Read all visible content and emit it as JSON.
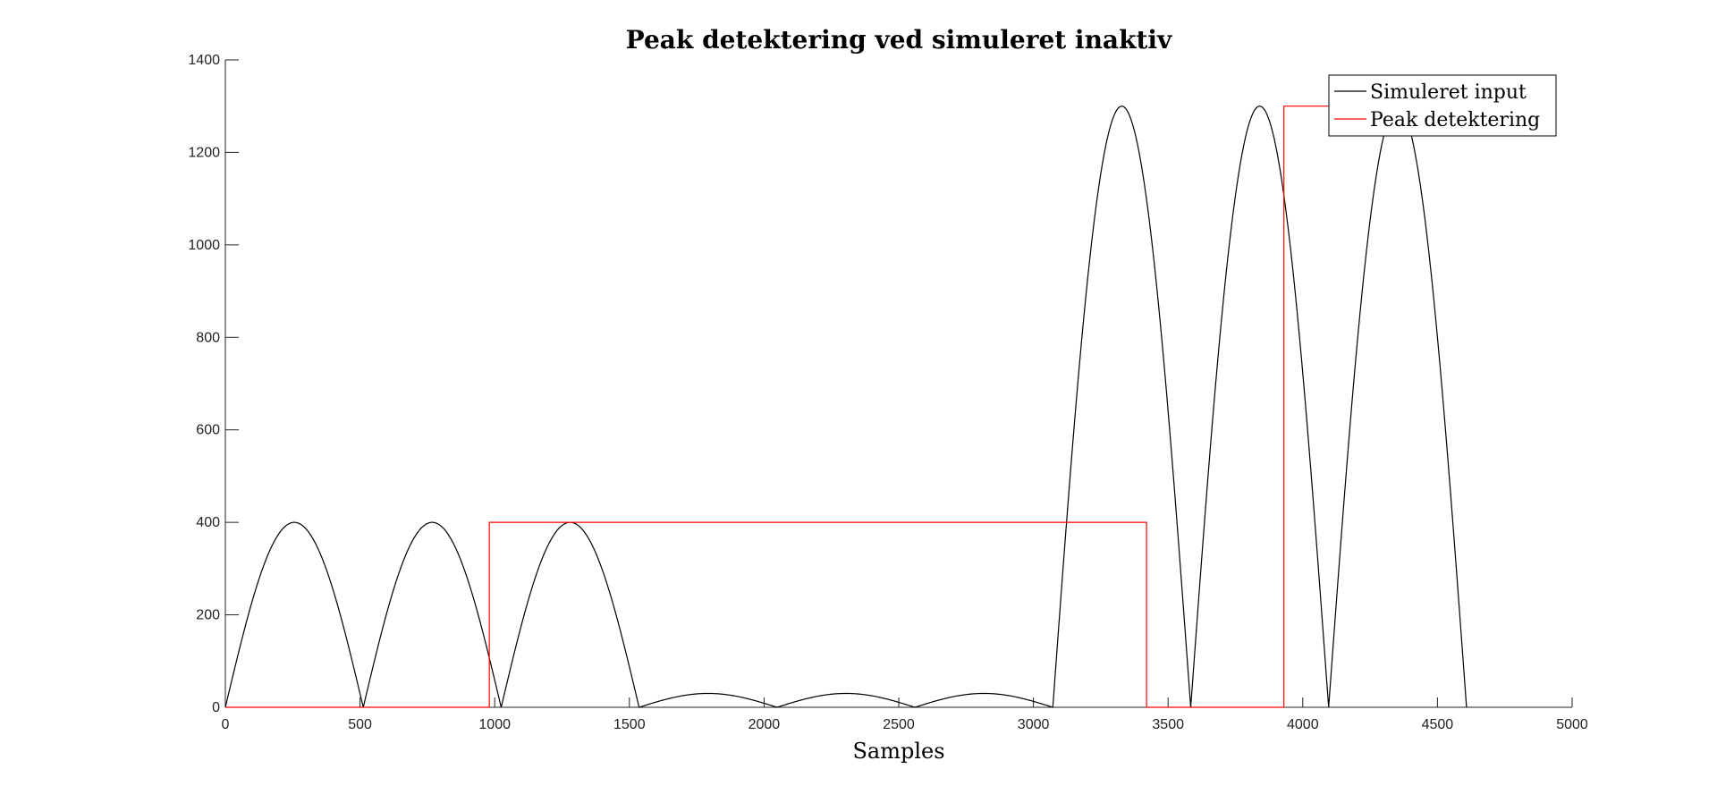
{
  "chart_data": {
    "type": "line",
    "title": "Peak detektering ved simuleret inaktiv",
    "xlabel": "Samples",
    "ylabel": "",
    "xlim": [
      0,
      5000
    ],
    "ylim": [
      0,
      1400
    ],
    "xticks": [
      0,
      500,
      1000,
      1500,
      2000,
      2500,
      3000,
      3500,
      4000,
      4500,
      5000
    ],
    "yticks": [
      0,
      200,
      400,
      600,
      800,
      1000,
      1200,
      1400
    ],
    "grid": false,
    "legend_position": "top-right",
    "series": [
      {
        "name": "Simuleret input",
        "color": "#000000",
        "style": "rectified-sine",
        "segments": [
          {
            "start": 0,
            "end": 512,
            "amplitude": 400
          },
          {
            "start": 512,
            "end": 1024,
            "amplitude": 400
          },
          {
            "start": 1024,
            "end": 1536,
            "amplitude": 400
          },
          {
            "start": 1536,
            "end": 2048,
            "amplitude": 30
          },
          {
            "start": 2048,
            "end": 2560,
            "amplitude": 30
          },
          {
            "start": 2560,
            "end": 3072,
            "amplitude": 30
          },
          {
            "start": 3072,
            "end": 3584,
            "amplitude": 1300
          },
          {
            "start": 3584,
            "end": 4096,
            "amplitude": 1300
          },
          {
            "start": 4096,
            "end": 4608,
            "amplitude": 1300
          }
        ],
        "x_end": 4608
      },
      {
        "name": "Peak detektering",
        "color": "#ff0000",
        "style": "step",
        "x": [
          0,
          980,
          980,
          3420,
          3420,
          3930,
          3930,
          4200
        ],
        "y": [
          0,
          0,
          400,
          400,
          0,
          0,
          1300,
          1300
        ]
      }
    ]
  }
}
